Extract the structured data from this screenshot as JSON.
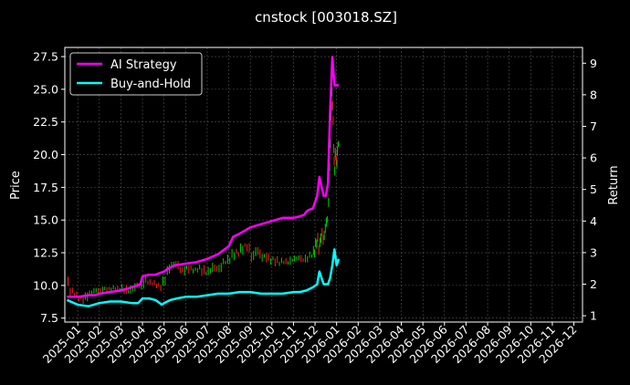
{
  "chart_data": {
    "type": "line",
    "title": "cnstock [003018.SZ]",
    "ylabel_left": "Price",
    "ylabel_right": "Return",
    "ylim_left": [
      7.2,
      28.2
    ],
    "ylim_right": [
      0.8,
      9.5
    ],
    "yticks_left": [
      "7.5",
      "10.0",
      "12.5",
      "15.0",
      "17.5",
      "20.0",
      "22.5",
      "25.0",
      "27.5"
    ],
    "yticks_right": [
      "1",
      "2",
      "3",
      "4",
      "5",
      "6",
      "7",
      "8",
      "9"
    ],
    "x_months": [
      "2025-01",
      "2025-02",
      "2025-03",
      "2025-04",
      "2025-05",
      "2025-06",
      "2025-07",
      "2025-08",
      "2025-09",
      "2025-10",
      "2025-11",
      "2025-12",
      "2026-01",
      "2026-02",
      "2026-03",
      "2026-04",
      "2026-05",
      "2026-06",
      "2026-07",
      "2026-08",
      "2026-09",
      "2026-10",
      "2026-11",
      "2026-12"
    ],
    "xlim_months": [
      -0.6,
      23.4
    ],
    "grid": true,
    "legend": "top-left",
    "colors": {
      "ai": "#ff00ff",
      "bh": "#00ffff",
      "up": "#00cc00",
      "down": "#ff2020"
    },
    "series": [
      {
        "name": "AI Strategy",
        "axis": "right",
        "x": [
          -0.5,
          0,
          0.5,
          0.8,
          1.0,
          1.5,
          2.0,
          2.5,
          2.9,
          3.0,
          3.3,
          3.6,
          4.0,
          4.2,
          4.5,
          5.0,
          5.5,
          6.0,
          6.5,
          7.0,
          7.2,
          7.5,
          8.0,
          8.5,
          9.0,
          9.5,
          10.0,
          10.3,
          10.5,
          10.6,
          10.7,
          10.9,
          11.0,
          11.1,
          11.2,
          11.4,
          11.5,
          11.6,
          11.7,
          11.75,
          11.8,
          11.9,
          12.0,
          12.1
        ],
        "values": [
          1.6,
          1.6,
          1.65,
          1.65,
          1.7,
          1.75,
          1.8,
          1.9,
          2.0,
          2.25,
          2.3,
          2.3,
          2.4,
          2.5,
          2.6,
          2.65,
          2.7,
          2.8,
          2.95,
          3.2,
          3.5,
          3.6,
          3.8,
          3.9,
          4.0,
          4.1,
          4.1,
          4.15,
          4.2,
          4.3,
          4.35,
          4.4,
          4.6,
          4.8,
          5.4,
          4.8,
          4.8,
          5.2,
          7.5,
          8.4,
          9.2,
          8.3,
          8.3,
          8.3
        ]
      },
      {
        "name": "Buy-and-Hold",
        "axis": "right",
        "x": [
          -0.5,
          0,
          0.5,
          1.0,
          1.5,
          2.0,
          2.5,
          2.8,
          3.0,
          3.3,
          3.6,
          3.9,
          4.0,
          4.3,
          4.6,
          5.0,
          5.5,
          6.0,
          6.5,
          7.0,
          7.5,
          8.0,
          8.5,
          9.0,
          9.5,
          10.0,
          10.3,
          10.6,
          10.9,
          11.1,
          11.2,
          11.4,
          11.6,
          11.7,
          11.8,
          11.9,
          12.0,
          12.1
        ],
        "values": [
          1.5,
          1.35,
          1.3,
          1.4,
          1.45,
          1.45,
          1.4,
          1.4,
          1.55,
          1.55,
          1.5,
          1.35,
          1.4,
          1.5,
          1.55,
          1.6,
          1.6,
          1.65,
          1.7,
          1.7,
          1.75,
          1.75,
          1.7,
          1.7,
          1.7,
          1.75,
          1.75,
          1.8,
          1.9,
          2.0,
          2.4,
          2.0,
          2.0,
          2.2,
          2.6,
          3.1,
          2.6,
          2.8
        ]
      }
    ],
    "price": {
      "axis": "left",
      "x": [
        -0.5,
        -0.3,
        -0.1,
        0.1,
        0.3,
        0.5,
        0.7,
        0.9,
        1.1,
        1.3,
        1.5,
        1.7,
        1.9,
        2.1,
        2.3,
        2.5,
        2.7,
        2.9,
        3.1,
        3.3,
        3.5,
        3.7,
        3.9,
        4.1,
        4.3,
        4.5,
        4.7,
        4.9,
        5.1,
        5.3,
        5.5,
        5.7,
        5.9,
        6.1,
        6.3,
        6.5,
        6.7,
        6.9,
        7.1,
        7.3,
        7.5,
        7.7,
        7.9,
        8.1,
        8.3,
        8.5,
        8.7,
        8.9,
        9.1,
        9.3,
        9.5,
        9.7,
        9.9,
        10.1,
        10.3,
        10.5,
        10.7,
        10.9,
        11.0,
        11.1,
        11.2,
        11.3,
        11.4,
        11.5,
        11.6,
        11.7,
        11.75,
        11.8,
        11.85,
        11.9,
        11.95,
        12.0,
        12.05,
        12.1
      ],
      "close": [
        10.4,
        9.6,
        9.3,
        9.0,
        8.8,
        9.2,
        9.4,
        9.6,
        9.5,
        9.7,
        9.6,
        9.8,
        9.7,
        9.9,
        9.6,
        9.8,
        10.1,
        10.0,
        10.6,
        10.3,
        10.2,
        10.0,
        9.8,
        10.6,
        11.4,
        11.6,
        11.2,
        11.0,
        11.3,
        11.1,
        11.2,
        11.4,
        11.0,
        11.2,
        11.6,
        11.3,
        11.8,
        11.9,
        12.2,
        12.6,
        12.4,
        13.0,
        12.8,
        11.8,
        12.6,
        12.0,
        12.2,
        11.8,
        12.0,
        11.7,
        11.9,
        11.8,
        12.0,
        12.1,
        12.2,
        12.0,
        12.3,
        12.4,
        12.8,
        13.6,
        12.6,
        14.0,
        13.2,
        14.5,
        15.0,
        20.0,
        23.5,
        24.8,
        21.5,
        18.6,
        20.6,
        19.2,
        20.8,
        21.0
      ]
    }
  }
}
